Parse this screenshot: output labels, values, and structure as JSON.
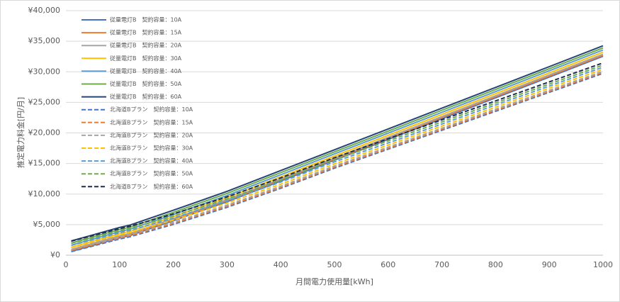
{
  "chart_data": {
    "type": "line",
    "y_label": "推定電力料金[円/月]",
    "x_label": "月間電力使用量[kWh]",
    "x": [
      10,
      100,
      120,
      200,
      300,
      400,
      500,
      600,
      700,
      800,
      900,
      1000
    ],
    "xlim": [
      0,
      1000
    ],
    "xticks": [
      0,
      100,
      200,
      300,
      400,
      500,
      600,
      700,
      800,
      900,
      1000
    ],
    "ylim": [
      0,
      40000
    ],
    "yticks": [
      {
        "value": 0,
        "label": "¥0"
      },
      {
        "value": 5000,
        "label": "¥5,000"
      },
      {
        "value": 10000,
        "label": "¥10,000"
      },
      {
        "value": 15000,
        "label": "¥15,000"
      },
      {
        "value": 20000,
        "label": "¥20,000"
      },
      {
        "value": 25000,
        "label": "¥25,000"
      },
      {
        "value": 30000,
        "label": "¥30,000"
      },
      {
        "value": 35000,
        "label": "¥35,000"
      },
      {
        "value": 40000,
        "label": "¥40,000"
      }
    ],
    "grid": true,
    "legend": "top-left",
    "series": [
      {
        "name": "従量電灯B　契約容量：10A",
        "color": "#4472c4",
        "values": [
          621,
          2841,
          3241,
          5641,
          8741,
          12141,
          15541,
          18941,
          22341,
          25741,
          29141,
          32541
        ]
      },
      {
        "name": "従量電灯B　契約容量：15A",
        "color": "#ed7d31",
        "values": [
          791,
          3011,
          3411,
          5811,
          8911,
          12311,
          15711,
          19111,
          22511,
          25911,
          29311,
          32711
        ]
      },
      {
        "name": "従量電灯B　契約容量：20A",
        "color": "#a5a5a5",
        "values": [
          962,
          3182,
          3582,
          5982,
          9082,
          12482,
          15882,
          19282,
          22682,
          26082,
          29482,
          32882
        ]
      },
      {
        "name": "従量電灯B　契約容量：30A",
        "color": "#ffc000",
        "values": [
          1303,
          3523,
          3923,
          6323,
          9423,
          12823,
          16223,
          19623,
          23023,
          26423,
          29823,
          33223
        ]
      },
      {
        "name": "従量電灯B　契約容量：40A",
        "color": "#5b9bd5",
        "values": [
          1644,
          3864,
          4264,
          6664,
          9764,
          13164,
          16564,
          19964,
          23364,
          26764,
          30164,
          33564
        ]
      },
      {
        "name": "従量電灯B　契約容量：50A",
        "color": "#70ad47",
        "values": [
          1985,
          4205,
          4605,
          7005,
          10105,
          13505,
          16905,
          20305,
          23705,
          27105,
          30505,
          33905
        ]
      },
      {
        "name": "従量電灯B　契約容量：60A",
        "color": "#264478",
        "values": [
          2326,
          4546,
          4946,
          7346,
          10446,
          13846,
          17246,
          20646,
          24046,
          27446,
          30846,
          34246
        ]
      },
      {
        "name": "北海道Bプラン　契約容量：10A",
        "color": "#4472c4",
        "dashed": true,
        "values": [
          591,
          2641,
          3041,
          5041,
          7841,
          10941,
          14241,
          17341,
          20441,
          23541,
          26641,
          29741
        ]
      },
      {
        "name": "北海道Bプラン　契約容量：15A",
        "color": "#ed7d31",
        "dashed": true,
        "values": [
          761,
          2811,
          3211,
          5211,
          8011,
          11111,
          14411,
          17511,
          20611,
          23711,
          26811,
          29911
        ]
      },
      {
        "name": "北海道Bプラン　契約容量：20A",
        "color": "#a5a5a5",
        "dashed": true,
        "values": [
          932,
          2982,
          3382,
          5382,
          8182,
          11282,
          14582,
          17682,
          20782,
          23882,
          26982,
          30082
        ]
      },
      {
        "name": "北海道Bプラン　契約容量：30A",
        "color": "#ffc000",
        "dashed": true,
        "values": [
          1273,
          3323,
          3723,
          5723,
          8523,
          11623,
          14923,
          18023,
          21123,
          24223,
          27323,
          30423
        ]
      },
      {
        "name": "北海道Bプラン　契約容量：40A",
        "color": "#5b9bd5",
        "dashed": true,
        "values": [
          1614,
          3664,
          4064,
          6064,
          8864,
          11964,
          15264,
          18364,
          21464,
          24564,
          27664,
          30764
        ]
      },
      {
        "name": "北海道Bプラン　契約容量：50A",
        "color": "#70ad47",
        "dashed": true,
        "values": [
          1955,
          4005,
          4405,
          6405,
          9205,
          12305,
          15605,
          18705,
          21805,
          24905,
          28005,
          31105
        ]
      },
      {
        "name": "北海道Bプラン　契約容量：60A",
        "color": "#1f2d50",
        "dashed": true,
        "values": [
          2296,
          4346,
          4746,
          6746,
          9546,
          12646,
          15946,
          19046,
          22146,
          25246,
          28346,
          31446
        ]
      }
    ]
  }
}
